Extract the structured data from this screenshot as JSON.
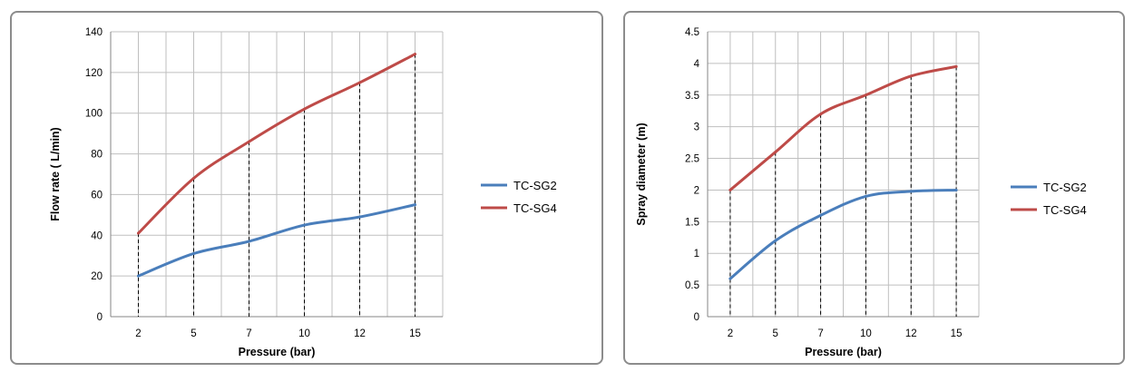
{
  "colors": {
    "series_1": "#4a7ebb",
    "series_2": "#be4b48",
    "grid": "#bfbfbf",
    "border": "#8c8c8c"
  },
  "chart_data": [
    {
      "type": "line",
      "xlabel": "Pressure (bar)",
      "ylabel": "Flow rate ( L/min)",
      "categories": [
        "2",
        "5",
        "7",
        "10",
        "12",
        "15"
      ],
      "ylim": [
        0,
        140
      ],
      "yticks": [
        0,
        20,
        40,
        60,
        80,
        100,
        120,
        140
      ],
      "ytick_labels": [
        "0",
        "20",
        "40",
        "60",
        "80",
        "100",
        "120",
        "140"
      ],
      "grid": true,
      "drop_lines": true,
      "legend_position": "right",
      "series": [
        {
          "name": "TC-SG2",
          "values": [
            20,
            31,
            37,
            45,
            49,
            55
          ]
        },
        {
          "name": "TC-SG4",
          "values": [
            41,
            68,
            86,
            102,
            115,
            129
          ]
        }
      ]
    },
    {
      "type": "line",
      "xlabel": "Pressure (bar)",
      "ylabel": "Spray diameter (m)",
      "categories": [
        "2",
        "5",
        "7",
        "10",
        "12",
        "15"
      ],
      "ylim": [
        0,
        4.5
      ],
      "yticks": [
        0,
        0.5,
        1,
        1.5,
        2,
        2.5,
        3,
        3.5,
        4,
        4.5
      ],
      "ytick_labels": [
        "0",
        "0.5",
        "1",
        "1.5",
        "2",
        "2.5",
        "3",
        "3.5",
        "4",
        "4.5"
      ],
      "grid": true,
      "drop_lines": true,
      "legend_position": "right",
      "series": [
        {
          "name": "TC-SG2",
          "values": [
            0.6,
            1.2,
            1.6,
            1.9,
            1.98,
            2.0
          ]
        },
        {
          "name": "TC-SG4",
          "values": [
            2.0,
            2.6,
            3.2,
            3.5,
            3.8,
            3.95
          ]
        }
      ]
    }
  ]
}
